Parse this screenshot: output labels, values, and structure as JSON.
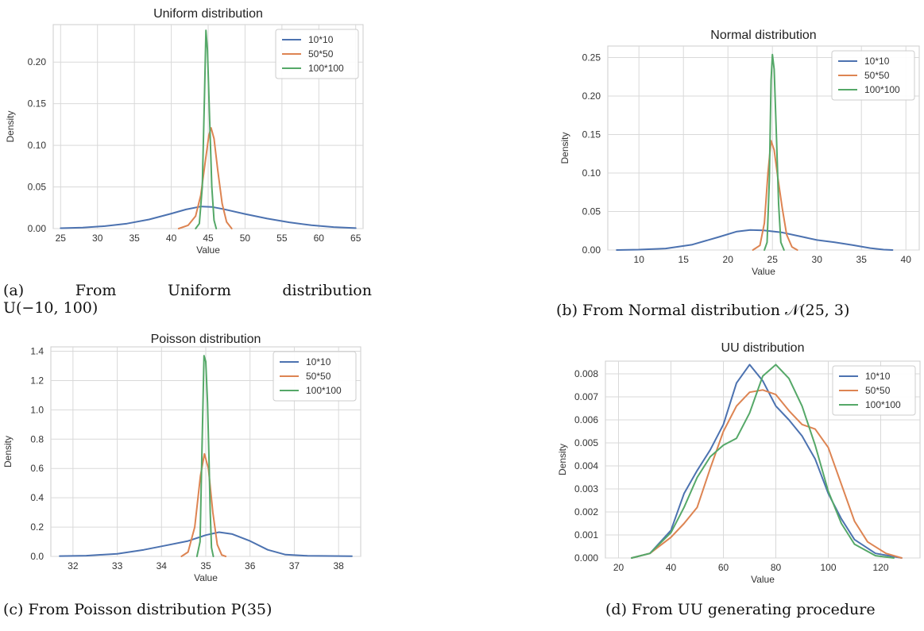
{
  "captions": {
    "a_line1": [
      "(a)",
      "From",
      "Uniform",
      "distribution"
    ],
    "a_line2": "U(−10, 100)",
    "b": "(b) From Normal distribution 𝒩(25, 3)",
    "c": "(c) From Poisson distribution P(35)",
    "d": "(d) From UU generating procedure"
  },
  "colors": {
    "10*10": "#4c72b0",
    "50*50": "#dd8452",
    "100*100": "#55a868",
    "grid": "#d9d9d9",
    "frame": "#cccccc"
  },
  "chart_data": [
    {
      "id": "a",
      "type": "line",
      "title": "Uniform distribution",
      "xlabel": "Value",
      "ylabel": "Density",
      "xlim": [
        24,
        66
      ],
      "ylim": [
        0,
        0.245
      ],
      "xticks": [
        25,
        30,
        35,
        40,
        45,
        50,
        55,
        60,
        65
      ],
      "yticks": [
        0.0,
        0.05,
        0.1,
        0.15,
        0.2
      ],
      "ytick_labels": [
        "0.00",
        "0.05",
        "0.10",
        "0.15",
        "0.20"
      ],
      "grid": true,
      "legend": "top-right",
      "series": [
        {
          "name": "10*10",
          "points": [
            [
              25,
              0.0005
            ],
            [
              28,
              0.0012
            ],
            [
              31,
              0.003
            ],
            [
              34,
              0.006
            ],
            [
              37,
              0.011
            ],
            [
              40,
              0.018
            ],
            [
              42,
              0.023
            ],
            [
              44,
              0.0265
            ],
            [
              45.5,
              0.026
            ],
            [
              47,
              0.0235
            ],
            [
              50,
              0.0175
            ],
            [
              53,
              0.012
            ],
            [
              56,
              0.0075
            ],
            [
              59,
              0.004
            ],
            [
              62,
              0.0018
            ],
            [
              65,
              0.0006
            ]
          ]
        },
        {
          "name": "50*50",
          "points": [
            [
              41,
              0
            ],
            [
              42.3,
              0.004
            ],
            [
              43.3,
              0.015
            ],
            [
              44,
              0.04
            ],
            [
              44.6,
              0.08
            ],
            [
              45.1,
              0.112
            ],
            [
              45.4,
              0.121
            ],
            [
              45.8,
              0.108
            ],
            [
              46.3,
              0.07
            ],
            [
              46.9,
              0.03
            ],
            [
              47.5,
              0.008
            ],
            [
              48.2,
              0
            ]
          ]
        },
        {
          "name": "100*100",
          "points": [
            [
              43.3,
              0
            ],
            [
              43.8,
              0.006
            ],
            [
              44.2,
              0.05
            ],
            [
              44.5,
              0.16
            ],
            [
              44.7,
              0.238
            ],
            [
              44.9,
              0.215
            ],
            [
              45.2,
              0.13
            ],
            [
              45.5,
              0.05
            ],
            [
              45.8,
              0.01
            ],
            [
              46.1,
              0
            ]
          ]
        }
      ]
    },
    {
      "id": "b",
      "type": "line",
      "title": "Normal distribution",
      "xlabel": "Value",
      "ylabel": "Density",
      "xlim": [
        6.5,
        41.5
      ],
      "ylim": [
        0,
        0.265
      ],
      "xticks": [
        10,
        15,
        20,
        25,
        30,
        35,
        40
      ],
      "yticks": [
        0.0,
        0.05,
        0.1,
        0.15,
        0.2,
        0.25
      ],
      "ytick_labels": [
        "0.00",
        "0.05",
        "0.10",
        "0.15",
        "0.20",
        "0.25"
      ],
      "grid": true,
      "legend": "top-right",
      "series": [
        {
          "name": "10*10",
          "points": [
            [
              7.5,
              0
            ],
            [
              10,
              0.0005
            ],
            [
              13,
              0.002
            ],
            [
              16,
              0.007
            ],
            [
              19,
              0.017
            ],
            [
              21,
              0.024
            ],
            [
              22.5,
              0.026
            ],
            [
              24,
              0.0255
            ],
            [
              26,
              0.023
            ],
            [
              28,
              0.018
            ],
            [
              30,
              0.013
            ],
            [
              32,
              0.01
            ],
            [
              34,
              0.0065
            ],
            [
              36,
              0.0025
            ],
            [
              37.5,
              0.0005
            ],
            [
              38.5,
              0
            ]
          ]
        },
        {
          "name": "50*50",
          "points": [
            [
              22.8,
              0
            ],
            [
              23.6,
              0.006
            ],
            [
              24.1,
              0.035
            ],
            [
              24.5,
              0.1
            ],
            [
              24.85,
              0.142
            ],
            [
              25.2,
              0.13
            ],
            [
              25.6,
              0.095
            ],
            [
              26.1,
              0.055
            ],
            [
              26.6,
              0.02
            ],
            [
              27.2,
              0.004
            ],
            [
              27.8,
              0
            ]
          ]
        },
        {
          "name": "100*100",
          "points": [
            [
              24.1,
              0
            ],
            [
              24.4,
              0.01
            ],
            [
              24.65,
              0.09
            ],
            [
              24.85,
              0.22
            ],
            [
              25.0,
              0.254
            ],
            [
              25.2,
              0.235
            ],
            [
              25.45,
              0.15
            ],
            [
              25.7,
              0.06
            ],
            [
              25.95,
              0.01
            ],
            [
              26.3,
              0
            ]
          ]
        }
      ]
    },
    {
      "id": "c",
      "type": "line",
      "title": "Poisson distribution",
      "xlabel": "Value",
      "ylabel": "Density",
      "xlim": [
        31.5,
        38.5
      ],
      "ylim": [
        0,
        1.43
      ],
      "xticks": [
        32,
        33,
        34,
        35,
        36,
        37,
        38
      ],
      "yticks": [
        0.0,
        0.2,
        0.4,
        0.6,
        0.8,
        1.0,
        1.2,
        1.4
      ],
      "ytick_labels": [
        "0.0",
        "0.2",
        "0.4",
        "0.6",
        "0.8",
        "1.0",
        "1.2",
        "1.4"
      ],
      "grid": true,
      "legend": "top-right",
      "series": [
        {
          "name": "10*10",
          "points": [
            [
              31.7,
              0.002
            ],
            [
              32.3,
              0.005
            ],
            [
              33,
              0.018
            ],
            [
              33.6,
              0.045
            ],
            [
              34.1,
              0.075
            ],
            [
              34.6,
              0.105
            ],
            [
              35,
              0.145
            ],
            [
              35.3,
              0.165
            ],
            [
              35.6,
              0.152
            ],
            [
              36,
              0.105
            ],
            [
              36.4,
              0.045
            ],
            [
              36.8,
              0.012
            ],
            [
              37.3,
              0.004
            ],
            [
              38.3,
              0.001
            ]
          ]
        },
        {
          "name": "50*50",
          "points": [
            [
              34.45,
              0
            ],
            [
              34.6,
              0.03
            ],
            [
              34.75,
              0.2
            ],
            [
              34.88,
              0.55
            ],
            [
              34.97,
              0.7
            ],
            [
              35.06,
              0.6
            ],
            [
              35.16,
              0.3
            ],
            [
              35.26,
              0.08
            ],
            [
              35.36,
              0.01
            ],
            [
              35.45,
              0
            ]
          ]
        },
        {
          "name": "100*100",
          "points": [
            [
              34.8,
              0
            ],
            [
              34.87,
              0.1
            ],
            [
              34.92,
              0.8
            ],
            [
              34.96,
              1.37
            ],
            [
              35.0,
              1.33
            ],
            [
              35.04,
              1.05
            ],
            [
              35.07,
              0.7
            ],
            [
              35.1,
              0.3
            ],
            [
              35.13,
              0.06
            ],
            [
              35.17,
              0
            ]
          ]
        }
      ]
    },
    {
      "id": "d",
      "type": "line",
      "title": "UU distribution",
      "xlabel": "Value",
      "ylabel": "Density",
      "xlim": [
        15,
        135
      ],
      "ylim": [
        0,
        0.00855
      ],
      "xticks": [
        20,
        40,
        60,
        80,
        100,
        120
      ],
      "yticks": [
        0.0,
        0.001,
        0.002,
        0.003,
        0.004,
        0.005,
        0.006,
        0.007,
        0.008
      ],
      "ytick_labels": [
        "0.000",
        "0.001",
        "0.002",
        "0.003",
        "0.004",
        "0.005",
        "0.006",
        "0.007",
        "0.008"
      ],
      "grid": true,
      "legend": "top-right",
      "series": [
        {
          "name": "10*10",
          "points": [
            [
              25,
              0
            ],
            [
              32,
              0.0002
            ],
            [
              40,
              0.0012
            ],
            [
              45,
              0.0028
            ],
            [
              50,
              0.0038
            ],
            [
              55,
              0.0047
            ],
            [
              60,
              0.0058
            ],
            [
              65,
              0.0076
            ],
            [
              70,
              0.0084
            ],
            [
              75,
              0.0077
            ],
            [
              80,
              0.0066
            ],
            [
              85,
              0.006
            ],
            [
              90,
              0.0053
            ],
            [
              95,
              0.0043
            ],
            [
              100,
              0.0028
            ],
            [
              105,
              0.0017
            ],
            [
              110,
              0.0008
            ],
            [
              118,
              0.0002
            ],
            [
              128,
              0
            ]
          ]
        },
        {
          "name": "50*50",
          "points": [
            [
              25,
              0
            ],
            [
              32,
              0.0002
            ],
            [
              40,
              0.0009
            ],
            [
              45,
              0.0015
            ],
            [
              50,
              0.0022
            ],
            [
              55,
              0.0039
            ],
            [
              60,
              0.0055
            ],
            [
              65,
              0.0066
            ],
            [
              70,
              0.0072
            ],
            [
              75,
              0.0073
            ],
            [
              80,
              0.0071
            ],
            [
              85,
              0.0064
            ],
            [
              90,
              0.0058
            ],
            [
              95,
              0.0056
            ],
            [
              100,
              0.0048
            ],
            [
              105,
              0.0032
            ],
            [
              110,
              0.0016
            ],
            [
              115,
              0.0007
            ],
            [
              122,
              0.0002
            ],
            [
              128,
              0
            ]
          ]
        },
        {
          "name": "100*100",
          "points": [
            [
              25,
              0
            ],
            [
              32,
              0.0002
            ],
            [
              40,
              0.0011
            ],
            [
              45,
              0.0022
            ],
            [
              50,
              0.0035
            ],
            [
              55,
              0.0044
            ],
            [
              60,
              0.0049
            ],
            [
              65,
              0.0052
            ],
            [
              70,
              0.0063
            ],
            [
              75,
              0.0079
            ],
            [
              80,
              0.0084
            ],
            [
              85,
              0.0078
            ],
            [
              90,
              0.0066
            ],
            [
              95,
              0.0049
            ],
            [
              100,
              0.0029
            ],
            [
              105,
              0.0015
            ],
            [
              110,
              0.0006
            ],
            [
              118,
              0.0001
            ],
            [
              125,
              0
            ]
          ]
        }
      ]
    }
  ]
}
